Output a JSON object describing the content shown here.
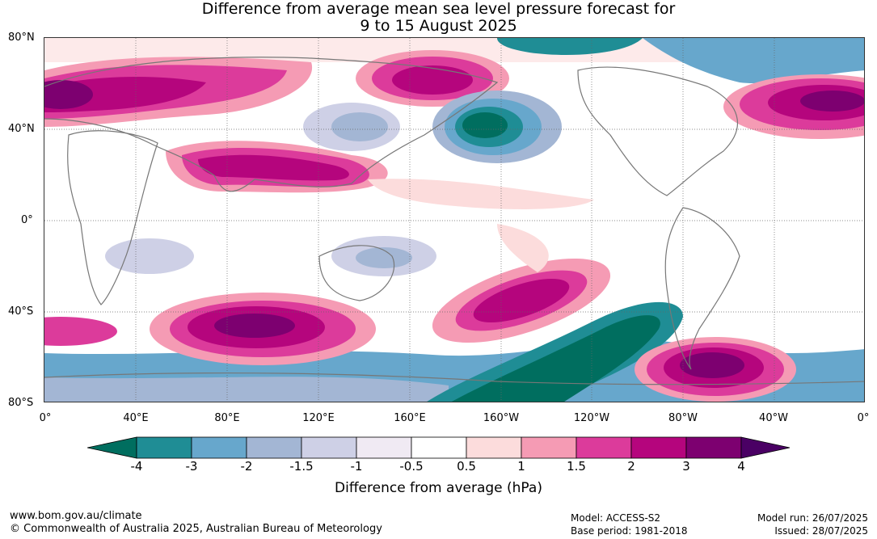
{
  "title": {
    "line1": "Difference from average mean sea level pressure forecast for",
    "line2": "9 to 15 August 2025"
  },
  "axes": {
    "lat_labels": [
      "80°N",
      "40°N",
      "0°",
      "40°S",
      "80°S"
    ],
    "lon_labels": [
      "0°",
      "40°E",
      "80°E",
      "120°E",
      "160°E",
      "160°W",
      "120°W",
      "80°W",
      "40°W",
      "0°"
    ]
  },
  "colorbar": {
    "label": "Difference from average (hPa)",
    "ticks": [
      "-4",
      "-3",
      "-2",
      "-1.5",
      "-1",
      "-0.5",
      "0.5",
      "1",
      "1.5",
      "2",
      "3",
      "4"
    ],
    "colors": [
      "#006e5f",
      "#1f8d95",
      "#67a7cc",
      "#a3b6d4",
      "#ced0e6",
      "#f0eaf3",
      "#ffffff",
      "#fcdcdc",
      "#f59bb4",
      "#dc3b9b",
      "#b5057d",
      "#7d0070",
      "#4a0064"
    ]
  },
  "footer": {
    "url": "www.bom.gov.au/climate",
    "copyright": "© Commonwealth of Australia 2025, Australian Bureau of Meteorology",
    "model": "Model: ACCESS-S2",
    "base_period": "Base period: 1981-2018",
    "model_run": "Model run: 26/07/2025",
    "issued": "Issued: 28/07/2025"
  }
}
